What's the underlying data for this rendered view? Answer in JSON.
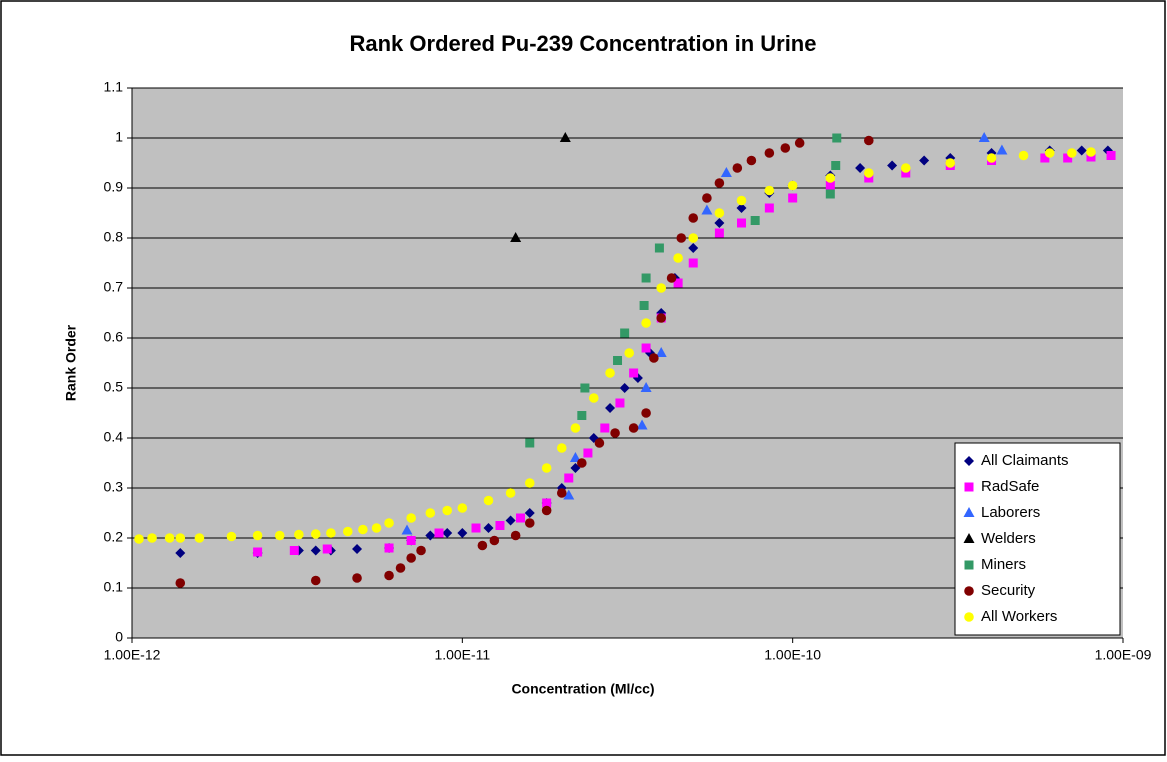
{
  "chart_data": {
    "type": "scatter",
    "title": "Rank Ordered Pu-239 Concentration in Urine",
    "x_label": "Concentration (Ml/cc)",
    "y_label": "Rank Order",
    "x_scale": "log",
    "xlim": [
      1e-12,
      1e-09
    ],
    "xticks": [
      {
        "value": 1e-12,
        "label": "1.00E-12"
      },
      {
        "value": 1e-11,
        "label": "1.00E-11"
      },
      {
        "value": 1e-10,
        "label": "1.00E-10"
      },
      {
        "value": 1e-09,
        "label": "1.00E-09"
      }
    ],
    "ylim": [
      0,
      1.1
    ],
    "yticks": [
      0,
      0.1,
      0.2,
      0.3,
      0.4,
      0.5,
      0.6,
      0.7,
      0.8,
      0.9,
      1,
      1.1
    ],
    "grid": true,
    "legend_position": "lower right",
    "series": [
      {
        "name": "All Claimants",
        "color": "#000080",
        "marker": "diamond",
        "x": [
          1.4e-12,
          2.4e-12,
          3.2e-12,
          3.6e-12,
          4e-12,
          4.8e-12,
          6e-12,
          7e-12,
          8e-12,
          9e-12,
          1e-11,
          1.2e-11,
          1.4e-11,
          1.6e-11,
          1.8e-11,
          2e-11,
          2.2e-11,
          2.5e-11,
          2.8e-11,
          3.1e-11,
          3.4e-11,
          3.7e-11,
          4e-11,
          4.4e-11,
          5e-11,
          6e-11,
          7e-11,
          8.5e-11,
          1e-10,
          1.3e-10,
          1.6e-10,
          2e-10,
          2.5e-10,
          3e-10,
          4e-10,
          6e-10,
          7.5e-10,
          9e-10
        ],
        "values": [
          0.17,
          0.17,
          0.175,
          0.175,
          0.175,
          0.178,
          0.18,
          0.195,
          0.205,
          0.21,
          0.21,
          0.22,
          0.235,
          0.25,
          0.27,
          0.3,
          0.34,
          0.4,
          0.46,
          0.5,
          0.52,
          0.57,
          0.65,
          0.72,
          0.78,
          0.83,
          0.86,
          0.89,
          0.905,
          0.925,
          0.94,
          0.945,
          0.955,
          0.96,
          0.97,
          0.975,
          0.975,
          0.975
        ]
      },
      {
        "name": "RadSafe",
        "color": "#ff00ff",
        "marker": "square",
        "x": [
          2.4e-12,
          3.1e-12,
          3.9e-12,
          6e-12,
          7e-12,
          8.5e-12,
          1.1e-11,
          1.3e-11,
          1.5e-11,
          1.8e-11,
          2.1e-11,
          2.4e-11,
          2.7e-11,
          3e-11,
          3.3e-11,
          3.6e-11,
          4e-11,
          4.5e-11,
          5e-11,
          6e-11,
          7e-11,
          8.5e-11,
          1e-10,
          1.3e-10,
          1.7e-10,
          2.2e-10,
          3e-10,
          4e-10,
          5.8e-10,
          6.8e-10,
          8e-10,
          9.2e-10
        ],
        "values": [
          0.172,
          0.175,
          0.178,
          0.18,
          0.195,
          0.21,
          0.22,
          0.225,
          0.24,
          0.27,
          0.32,
          0.37,
          0.42,
          0.47,
          0.53,
          0.58,
          0.64,
          0.71,
          0.75,
          0.81,
          0.83,
          0.86,
          0.88,
          0.905,
          0.92,
          0.93,
          0.945,
          0.955,
          0.96,
          0.96,
          0.962,
          0.965
        ]
      },
      {
        "name": "Laborers",
        "color": "#3366ff",
        "marker": "triangle",
        "x": [
          6.8e-12,
          2.1e-11,
          2.2e-11,
          3.5e-11,
          3.6e-11,
          4e-11,
          5.5e-11,
          6.3e-11,
          3.8e-10,
          4.3e-10
        ],
        "values": [
          0.215,
          0.285,
          0.36,
          0.425,
          0.5,
          0.57,
          0.855,
          0.93,
          1.0,
          0.975
        ]
      },
      {
        "name": "Welders",
        "color": "#000000",
        "marker": "triangle",
        "x": [
          1.45e-11,
          2.05e-11
        ],
        "values": [
          0.8,
          1.0
        ]
      },
      {
        "name": "Miners",
        "color": "#339966",
        "marker": "square",
        "x": [
          1.6e-11,
          2.3e-11,
          2.35e-11,
          2.95e-11,
          3.1e-11,
          3.55e-11,
          3.6e-11,
          3.95e-11,
          7.7e-11,
          1.3e-10,
          1.35e-10,
          1.36e-10
        ],
        "values": [
          0.39,
          0.445,
          0.5,
          0.555,
          0.61,
          0.665,
          0.72,
          0.78,
          0.835,
          0.888,
          0.945,
          1.0
        ]
      },
      {
        "name": "Security",
        "color": "#800000",
        "marker": "circle",
        "x": [
          1.4e-12,
          3.6e-12,
          4.8e-12,
          6e-12,
          6.5e-12,
          7e-12,
          7.5e-12,
          1.15e-11,
          1.25e-11,
          1.45e-11,
          1.6e-11,
          1.8e-11,
          2e-11,
          2.3e-11,
          2.6e-11,
          2.9e-11,
          3.3e-11,
          3.6e-11,
          3.8e-11,
          4e-11,
          4.3e-11,
          4.6e-11,
          5e-11,
          5.5e-11,
          6e-11,
          6.8e-11,
          7.5e-11,
          8.5e-11,
          9.5e-11,
          1.05e-10,
          1.7e-10
        ],
        "values": [
          0.11,
          0.115,
          0.12,
          0.125,
          0.14,
          0.16,
          0.175,
          0.185,
          0.195,
          0.205,
          0.23,
          0.255,
          0.29,
          0.35,
          0.39,
          0.41,
          0.42,
          0.45,
          0.56,
          0.64,
          0.72,
          0.8,
          0.84,
          0.88,
          0.91,
          0.94,
          0.955,
          0.97,
          0.98,
          0.99,
          0.995
        ]
      },
      {
        "name": "All Workers",
        "color": "#ffff00",
        "marker": "circle",
        "x": [
          1.05e-12,
          1.15e-12,
          1.3e-12,
          1.4e-12,
          1.6e-12,
          2e-12,
          2.4e-12,
          2.8e-12,
          3.2e-12,
          3.6e-12,
          4e-12,
          4.5e-12,
          5e-12,
          5.5e-12,
          6e-12,
          7e-12,
          8e-12,
          9e-12,
          1e-11,
          1.2e-11,
          1.4e-11,
          1.6e-11,
          1.8e-11,
          2e-11,
          2.2e-11,
          2.5e-11,
          2.8e-11,
          3.2e-11,
          3.6e-11,
          4e-11,
          4.5e-11,
          5e-11,
          6e-11,
          7e-11,
          8.5e-11,
          1e-10,
          1.3e-10,
          1.7e-10,
          2.2e-10,
          3e-10,
          4e-10,
          5e-10,
          6e-10,
          7e-10,
          8e-10
        ],
        "values": [
          0.198,
          0.2,
          0.2,
          0.2,
          0.2,
          0.203,
          0.205,
          0.205,
          0.207,
          0.208,
          0.21,
          0.213,
          0.217,
          0.22,
          0.23,
          0.24,
          0.25,
          0.255,
          0.26,
          0.275,
          0.29,
          0.31,
          0.34,
          0.38,
          0.42,
          0.48,
          0.53,
          0.57,
          0.63,
          0.7,
          0.76,
          0.8,
          0.85,
          0.875,
          0.895,
          0.905,
          0.92,
          0.93,
          0.94,
          0.95,
          0.96,
          0.965,
          0.97,
          0.97,
          0.972
        ]
      }
    ]
  }
}
